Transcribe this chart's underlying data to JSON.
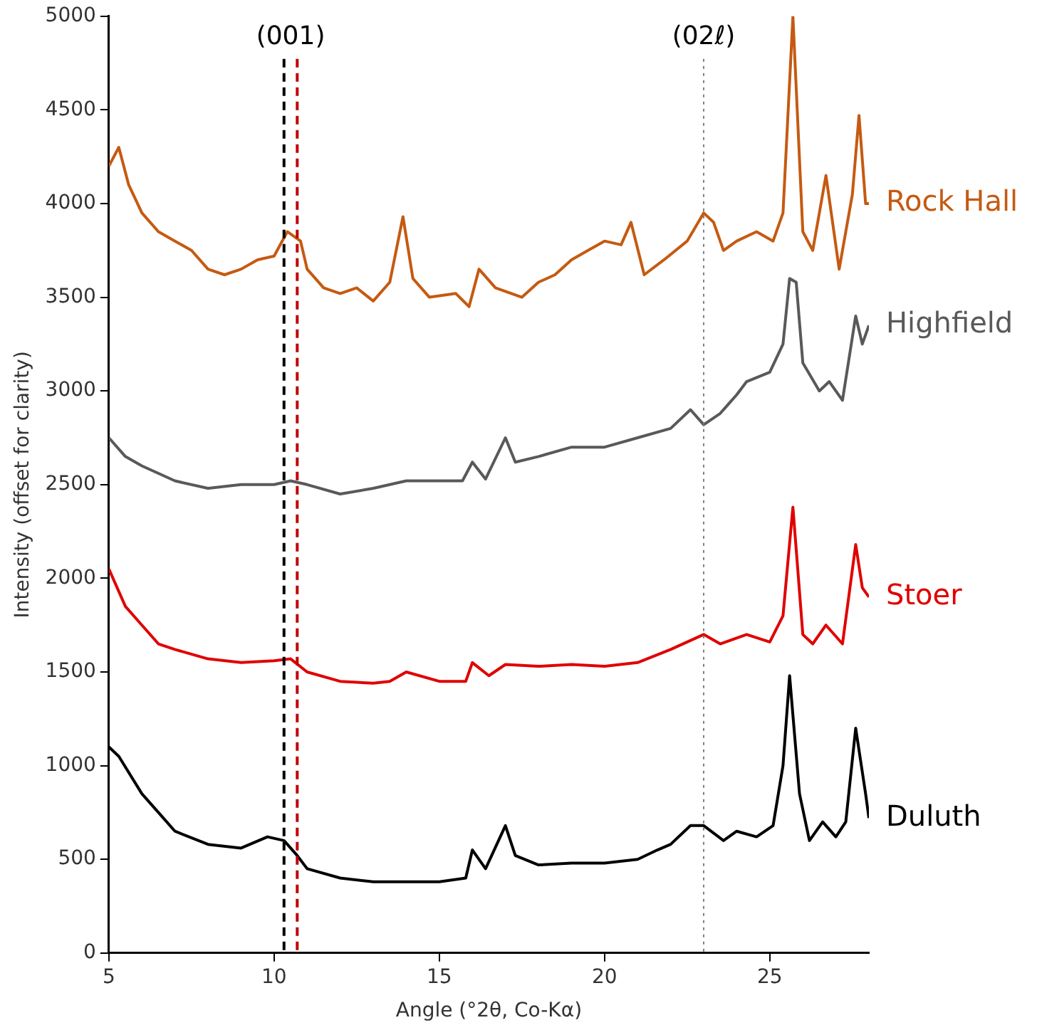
{
  "chart_data": {
    "type": "line",
    "xlabel": "Angle (°2θ, Co-Kα)",
    "ylabel": "Intensity (offset for clarity)",
    "xlim": [
      5,
      28
    ],
    "xticks": [
      5,
      10,
      15,
      20,
      25
    ],
    "ylim": [
      0,
      5000
    ],
    "yticks": [
      0,
      500,
      1000,
      1500,
      2000,
      2500,
      3000,
      3500,
      4000,
      4500,
      5000
    ],
    "annotations": [
      "(001)"
    ],
    "grid": false,
    "legend": false,
    "marker": "none",
    "line_style": "solid",
    "series": [
      {
        "name": "Rock Hall",
        "color": "#c55a11",
        "x": [
          5,
          5.3,
          5.6,
          6,
          6.5,
          7,
          7.5,
          8,
          8.5,
          9,
          9.5,
          10,
          10.4,
          10.8,
          11,
          11.5,
          12,
          12.5,
          13,
          13.5,
          13.9,
          14.2,
          14.7,
          15.5,
          15.9,
          16.2,
          16.7,
          17.5,
          18,
          18.5,
          19,
          19.5,
          20,
          20.5,
          20.8,
          21.2,
          21.8,
          22.5,
          23,
          23.3,
          23.6,
          24,
          24.6,
          25.1,
          25.4,
          25.7,
          26,
          26.3,
          26.7,
          27.1,
          27.5,
          27.7,
          27.9,
          28
        ],
        "values": [
          4200,
          4300,
          4100,
          3950,
          3850,
          3800,
          3750,
          3650,
          3620,
          3650,
          3700,
          3720,
          3850,
          3800,
          3650,
          3550,
          3520,
          3550,
          3480,
          3580,
          3930,
          3600,
          3500,
          3520,
          3450,
          3650,
          3550,
          3500,
          3580,
          3620,
          3700,
          3750,
          3800,
          3780,
          3900,
          3620,
          3700,
          3800,
          3950,
          3900,
          3750,
          3800,
          3850,
          3800,
          3950,
          5000,
          3850,
          3750,
          4150,
          3650,
          4050,
          4470,
          4000,
          4000
        ]
      },
      {
        "name": "Highfield",
        "color": "#595959",
        "x": [
          5,
          5.5,
          6,
          7,
          8,
          9,
          10,
          10.5,
          11,
          12,
          13,
          14,
          15,
          15.7,
          16,
          16.4,
          17,
          17.3,
          18,
          19,
          20,
          21,
          22,
          22.6,
          23,
          23.5,
          24,
          24.3,
          25,
          25.4,
          25.6,
          25.8,
          26,
          26.5,
          26.8,
          27.2,
          27.6,
          27.8,
          28
        ],
        "values": [
          2750,
          2650,
          2600,
          2520,
          2480,
          2500,
          2500,
          2520,
          2500,
          2450,
          2480,
          2520,
          2520,
          2520,
          2620,
          2530,
          2750,
          2620,
          2650,
          2700,
          2700,
          2750,
          2800,
          2900,
          2820,
          2880,
          2980,
          3050,
          3100,
          3250,
          3600,
          3580,
          3150,
          3000,
          3050,
          2950,
          3400,
          3250,
          3350
        ]
      },
      {
        "name": "Stoer",
        "color": "#e00000",
        "x": [
          5,
          5.5,
          6,
          6.5,
          7,
          8,
          9,
          10,
          10.5,
          11,
          12,
          13,
          13.5,
          14,
          15,
          15.8,
          16,
          16.5,
          17,
          18,
          19,
          20,
          21,
          22,
          23,
          23.5,
          24.3,
          25,
          25.4,
          25.7,
          26,
          26.3,
          26.7,
          27.2,
          27.6,
          27.8,
          28
        ],
        "values": [
          2050,
          1850,
          1750,
          1650,
          1620,
          1570,
          1550,
          1560,
          1570,
          1500,
          1450,
          1440,
          1450,
          1500,
          1450,
          1450,
          1550,
          1480,
          1540,
          1530,
          1540,
          1530,
          1550,
          1620,
          1700,
          1650,
          1700,
          1660,
          1800,
          2380,
          1700,
          1650,
          1750,
          1650,
          2180,
          1950,
          1900
        ]
      },
      {
        "name": "Duluth",
        "color": "#000000",
        "x": [
          5,
          5.3,
          6,
          6.5,
          7,
          8,
          9,
          9.8,
          10.3,
          10.7,
          11,
          12,
          13,
          14,
          15,
          15.8,
          16,
          16.4,
          17,
          17.3,
          18,
          19,
          20,
          21,
          21.6,
          22,
          22.6,
          23,
          23.6,
          24,
          24.6,
          25.1,
          25.4,
          25.6,
          25.9,
          26.2,
          26.6,
          27,
          27.3,
          27.6,
          27.9,
          28
        ],
        "values": [
          1100,
          1050,
          850,
          750,
          650,
          580,
          560,
          620,
          600,
          520,
          450,
          400,
          380,
          380,
          380,
          400,
          550,
          450,
          680,
          520,
          470,
          480,
          480,
          500,
          550,
          580,
          680,
          680,
          600,
          650,
          620,
          680,
          1000,
          1480,
          850,
          600,
          700,
          620,
          700,
          1200,
          850,
          720
        ]
      }
    ],
    "ref_lines": [
      {
        "axis": "x",
        "value": 10.3,
        "label": null,
        "color": "#000000",
        "line_style": "dashed"
      },
      {
        "axis": "x",
        "value": 10.7,
        "label": null,
        "color": "#c00000",
        "line_style": "dashed"
      },
      {
        "axis": "x",
        "value": 23,
        "label": "(02ℓ)",
        "color": "#808080",
        "line_style": "dotted"
      }
    ]
  }
}
